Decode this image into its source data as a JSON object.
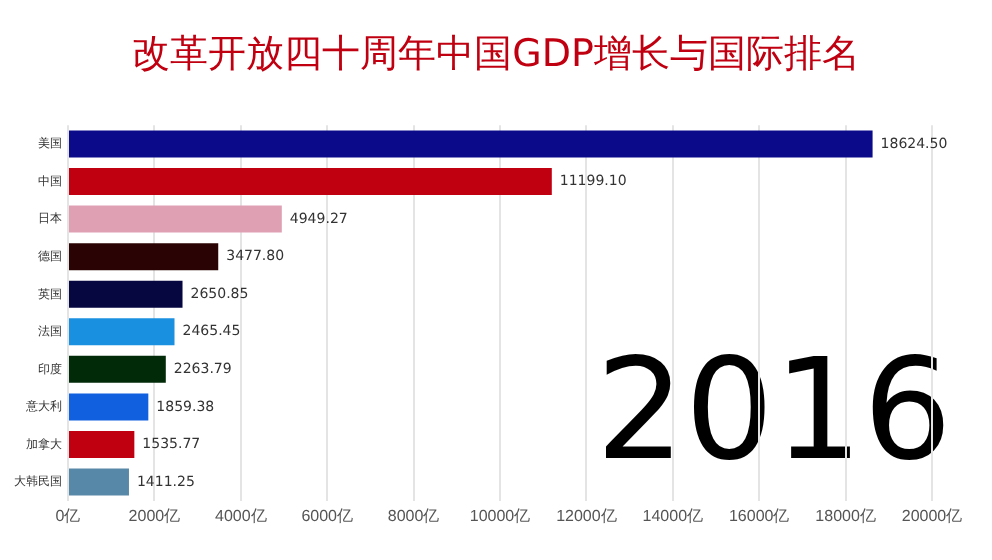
{
  "chart_data": {
    "type": "bar",
    "orientation": "horizontal",
    "title": "改革开放四十周年中国GDP增长与国际排名",
    "categories": [
      "美国",
      "中国",
      "日本",
      "德国",
      "英国",
      "法国",
      "印度",
      "意大利",
      "加拿大",
      "大韩民国"
    ],
    "values": [
      18624.5,
      11199.1,
      4949.27,
      3477.8,
      2650.85,
      2465.45,
      2263.79,
      1859.38,
      1535.77,
      1411.25
    ],
    "value_labels": [
      "18624.50",
      "11199.10",
      "4949.27",
      "3477.80",
      "2650.85",
      "2465.45",
      "2263.79",
      "1859.38",
      "1535.77",
      "1411.25"
    ],
    "colors": [
      "#0a0a8a",
      "#c00010",
      "#e0a0b4",
      "#2a0404",
      "#060640",
      "#1a90e0",
      "#002a08",
      "#1060e0",
      "#c00010",
      "#5888a8"
    ],
    "xlim": [
      0,
      20000
    ],
    "xticks": [
      {
        "value": 0,
        "label": "0亿"
      },
      {
        "value": 2000,
        "label": "2000亿"
      },
      {
        "value": 4000,
        "label": "4000亿"
      },
      {
        "value": 6000,
        "label": "6000亿"
      },
      {
        "value": 8000,
        "label": "8000亿"
      },
      {
        "value": 10000,
        "label": "10000亿"
      },
      {
        "value": 12000,
        "label": "12000亿"
      },
      {
        "value": 14000,
        "label": "14000亿"
      },
      {
        "value": 16000,
        "label": "16000亿"
      },
      {
        "value": 18000,
        "label": "18000亿"
      },
      {
        "value": 20000,
        "label": "20000亿"
      }
    ],
    "grid": "x",
    "legend": false,
    "annotations": [
      "2016"
    ]
  }
}
